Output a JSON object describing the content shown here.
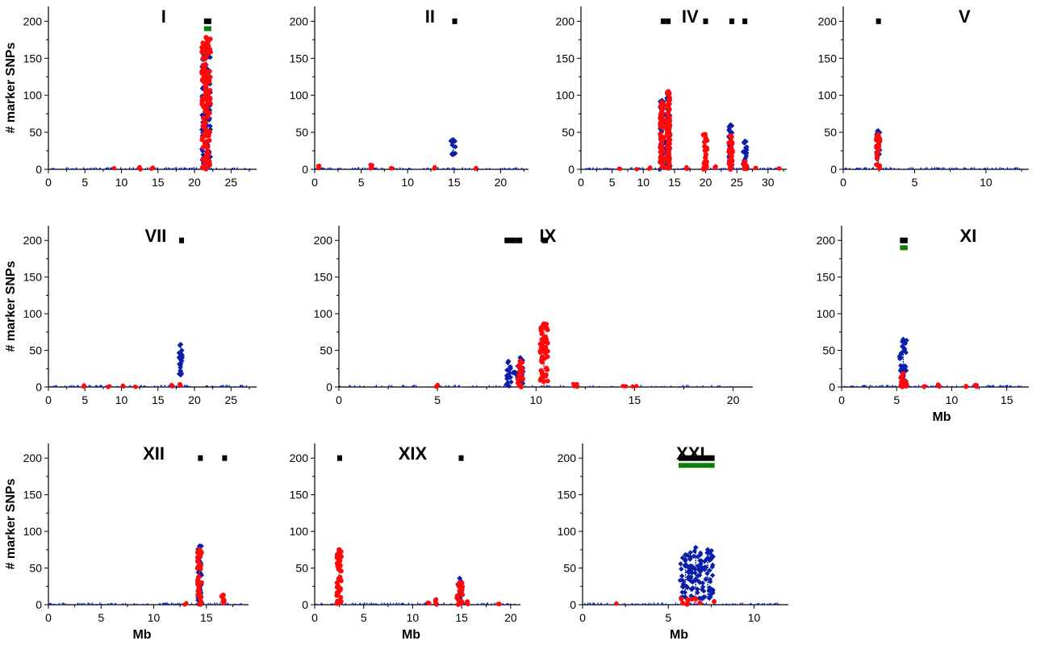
{
  "colors": {
    "blue_series": "#0a1ea8",
    "red_series": "#ff0a0a",
    "black_marker": "#000000",
    "green_marker": "#0a7d0a"
  },
  "y_axis_label": "# marker SNPs",
  "x_axis_label": "Mb",
  "chart_data": [
    {
      "type": "scatter",
      "title": "I",
      "xlim": [
        0,
        28.5
      ],
      "ylim": [
        0,
        220
      ],
      "xticks": [
        0,
        5,
        10,
        15,
        20,
        25
      ],
      "yticks": [
        0,
        50,
        100,
        150,
        200
      ],
      "ylabel": "# marker SNPs",
      "xlabel": "",
      "black_markers": [
        [
          21.3,
          22.3
        ]
      ],
      "green_markers": [
        [
          21.3,
          22.3
        ]
      ],
      "clusters": [
        {
          "color": "blue",
          "x": 21.6,
          "spread": 0.6,
          "max": 165,
          "min": 0
        },
        {
          "color": "red",
          "x": 21.6,
          "spread": 0.6,
          "max": 178,
          "min": 0
        }
      ],
      "bumps": [
        {
          "color": "red",
          "x": 9.0,
          "max": 2
        },
        {
          "color": "red",
          "x": 12.5,
          "max": 4
        },
        {
          "color": "red",
          "x": 14.2,
          "max": 3
        }
      ]
    },
    {
      "type": "scatter",
      "title": "II",
      "xlim": [
        0,
        23
      ],
      "ylim": [
        0,
        220
      ],
      "xticks": [
        0,
        5,
        10,
        15,
        20
      ],
      "yticks": [
        0,
        50,
        100,
        150,
        200
      ],
      "ylabel": "",
      "xlabel": "",
      "black_markers": [
        [
          14.8,
          15.2
        ]
      ],
      "green_markers": [],
      "clusters": [
        {
          "color": "blue",
          "x": 14.9,
          "spread": 0.3,
          "max": 40,
          "min": 18
        }
      ],
      "bumps": [
        {
          "color": "red",
          "x": 0.4,
          "max": 5
        },
        {
          "color": "red",
          "x": 6.1,
          "max": 7
        },
        {
          "color": "red",
          "x": 8.3,
          "max": 3
        },
        {
          "color": "red",
          "x": 12.9,
          "max": 3
        },
        {
          "color": "red",
          "x": 17.3,
          "max": 2
        }
      ]
    },
    {
      "type": "scatter",
      "title": "IV",
      "xlim": [
        0,
        33
      ],
      "ylim": [
        0,
        220
      ],
      "xticks": [
        0,
        5,
        10,
        15,
        20,
        25,
        30
      ],
      "yticks": [
        0,
        50,
        100,
        150,
        200
      ],
      "ylabel": "",
      "xlabel": "",
      "black_markers": [
        [
          12.8,
          13.3
        ],
        [
          13.6,
          14.1
        ],
        [
          19.6,
          20.1
        ],
        [
          23.8,
          24.3
        ],
        [
          25.9,
          26.4
        ]
      ],
      "green_markers": [],
      "clusters": [
        {
          "color": "blue",
          "x": 13.0,
          "spread": 0.3,
          "max": 93,
          "min": 0
        },
        {
          "color": "red",
          "x": 13.0,
          "spread": 0.3,
          "max": 90,
          "min": 0
        },
        {
          "color": "blue",
          "x": 14.0,
          "spread": 0.3,
          "max": 100,
          "min": 0
        },
        {
          "color": "red",
          "x": 14.0,
          "spread": 0.3,
          "max": 105,
          "min": 0
        },
        {
          "color": "red",
          "x": 19.9,
          "spread": 0.35,
          "max": 47,
          "min": 0
        },
        {
          "color": "blue",
          "x": 24.0,
          "spread": 0.3,
          "max": 60,
          "min": 0
        },
        {
          "color": "red",
          "x": 24.0,
          "spread": 0.3,
          "max": 45,
          "min": 0
        },
        {
          "color": "blue",
          "x": 26.3,
          "spread": 0.3,
          "max": 38,
          "min": 5
        },
        {
          "color": "red",
          "x": 26.3,
          "spread": 0.3,
          "max": 10,
          "min": 0
        }
      ],
      "bumps": [
        {
          "color": "red",
          "x": 6.2,
          "max": 2
        },
        {
          "color": "red",
          "x": 9.0,
          "max": 2
        },
        {
          "color": "red",
          "x": 11.0,
          "max": 3
        },
        {
          "color": "red",
          "x": 17.0,
          "max": 3
        },
        {
          "color": "red",
          "x": 21.5,
          "max": 4
        },
        {
          "color": "red",
          "x": 28.0,
          "max": 3
        },
        {
          "color": "red",
          "x": 31.8,
          "max": 2
        }
      ]
    },
    {
      "type": "scatter",
      "title": "V",
      "xlim": [
        0,
        13
      ],
      "ylim": [
        0,
        220
      ],
      "xticks": [
        0,
        5,
        10
      ],
      "yticks": [
        0,
        50,
        100,
        150,
        200
      ],
      "ylabel": "",
      "xlabel": "",
      "black_markers": [
        [
          2.3,
          2.6
        ]
      ],
      "green_markers": [],
      "clusters": [
        {
          "color": "blue",
          "x": 2.45,
          "spread": 0.15,
          "max": 52,
          "min": 0
        },
        {
          "color": "red",
          "x": 2.45,
          "spread": 0.15,
          "max": 47,
          "min": 0
        }
      ],
      "bumps": []
    },
    {
      "type": "scatter",
      "title": "VII",
      "xlim": [
        0,
        28.5
      ],
      "ylim": [
        0,
        220
      ],
      "xticks": [
        0,
        5,
        10,
        15,
        20,
        25
      ],
      "yticks": [
        0,
        50,
        100,
        150,
        200
      ],
      "ylabel": "# marker SNPs",
      "xlabel": "",
      "black_markers": [
        [
          17.9,
          18.4
        ]
      ],
      "green_markers": [],
      "clusters": [
        {
          "color": "blue",
          "x": 18.1,
          "spread": 0.2,
          "max": 58,
          "min": 15
        }
      ],
      "bumps": [
        {
          "color": "red",
          "x": 4.8,
          "max": 3
        },
        {
          "color": "red",
          "x": 8.3,
          "max": 2
        },
        {
          "color": "red",
          "x": 10.3,
          "max": 2
        },
        {
          "color": "red",
          "x": 12.0,
          "max": 2
        },
        {
          "color": "red",
          "x": 17.0,
          "max": 3
        },
        {
          "color": "red",
          "x": 18.1,
          "max": 4
        }
      ]
    },
    {
      "type": "scatter",
      "title": "IX",
      "xlim": [
        0,
        21
      ],
      "ylim": [
        0,
        220
      ],
      "xticks": [
        0,
        5,
        10,
        15,
        20
      ],
      "yticks": [
        0,
        50,
        100,
        150,
        200
      ],
      "ylabel": "",
      "xlabel": "",
      "black_markers": [
        [
          8.4,
          8.7
        ],
        [
          8.7,
          9.0
        ],
        [
          9.0,
          9.3
        ],
        [
          10.3,
          10.6
        ]
      ],
      "green_markers": [],
      "clusters": [
        {
          "color": "blue",
          "x": 8.6,
          "spread": 0.15,
          "max": 35,
          "min": 0
        },
        {
          "color": "blue",
          "x": 8.9,
          "spread": 0.05,
          "max": 20,
          "min": 18
        },
        {
          "color": "blue",
          "x": 9.2,
          "spread": 0.15,
          "max": 40,
          "min": 0
        },
        {
          "color": "red",
          "x": 9.2,
          "spread": 0.15,
          "max": 35,
          "min": 0
        },
        {
          "color": "red",
          "x": 10.4,
          "spread": 0.2,
          "max": 86,
          "min": 0
        }
      ],
      "bumps": [
        {
          "color": "red",
          "x": 5.0,
          "max": 3
        },
        {
          "color": "red",
          "x": 12.0,
          "max": 7
        },
        {
          "color": "red",
          "x": 14.5,
          "max": 3
        },
        {
          "color": "red",
          "x": 15.0,
          "max": 2
        }
      ]
    },
    {
      "type": "scatter",
      "title": "XI",
      "xlim": [
        0,
        17
      ],
      "ylim": [
        0,
        220
      ],
      "xticks": [
        0,
        5,
        10,
        15
      ],
      "yticks": [
        0,
        50,
        100,
        150,
        200
      ],
      "ylabel": "",
      "xlabel": "Mb",
      "black_markers": [
        [
          5.3,
          6.0
        ]
      ],
      "green_markers": [
        [
          5.3,
          6.0
        ]
      ],
      "clusters": [
        {
          "color": "blue",
          "x": 5.6,
          "spread": 0.35,
          "max": 65,
          "min": 5
        },
        {
          "color": "red",
          "x": 5.6,
          "spread": 0.35,
          "max": 18,
          "min": 0
        }
      ],
      "bumps": [
        {
          "color": "red",
          "x": 7.5,
          "max": 3
        },
        {
          "color": "red",
          "x": 8.8,
          "max": 5
        },
        {
          "color": "red",
          "x": 11.3,
          "max": 3
        },
        {
          "color": "red",
          "x": 12.2,
          "max": 3
        }
      ]
    },
    {
      "type": "scatter",
      "title": "XII",
      "xlim": [
        0,
        19
      ],
      "ylim": [
        0,
        220
      ],
      "xticks": [
        0,
        5,
        10,
        15
      ],
      "yticks": [
        0,
        50,
        100,
        150,
        200
      ],
      "ylabel": "# marker SNPs",
      "xlabel": "Mb",
      "black_markers": [
        [
          14.2,
          14.5
        ],
        [
          16.5,
          16.8
        ]
      ],
      "green_markers": [],
      "clusters": [
        {
          "color": "blue",
          "x": 14.35,
          "spread": 0.2,
          "max": 80,
          "min": 0
        },
        {
          "color": "red",
          "x": 14.35,
          "spread": 0.2,
          "max": 75,
          "min": 0
        },
        {
          "color": "red",
          "x": 16.6,
          "spread": 0.2,
          "max": 13,
          "min": 0
        }
      ],
      "bumps": [
        {
          "color": "red",
          "x": 13.0,
          "max": 3
        }
      ]
    },
    {
      "type": "scatter",
      "title": "XIX",
      "xlim": [
        0,
        21
      ],
      "ylim": [
        0,
        220
      ],
      "xticks": [
        0,
        5,
        10,
        15,
        20
      ],
      "yticks": [
        0,
        50,
        100,
        150,
        200
      ],
      "ylabel": "",
      "xlabel": "Mb",
      "black_markers": [
        [
          2.3,
          2.8
        ],
        [
          14.7,
          15.0
        ]
      ],
      "green_markers": [],
      "clusters": [
        {
          "color": "red",
          "x": 2.5,
          "spread": 0.25,
          "max": 75,
          "min": 0
        },
        {
          "color": "blue",
          "x": 14.8,
          "spread": 0.2,
          "max": 36,
          "min": 0
        },
        {
          "color": "red",
          "x": 14.8,
          "spread": 0.3,
          "max": 30,
          "min": 0
        }
      ],
      "bumps": [
        {
          "color": "red",
          "x": 12.4,
          "max": 8
        },
        {
          "color": "red",
          "x": 11.6,
          "max": 3
        },
        {
          "color": "red",
          "x": 15.6,
          "max": 5
        },
        {
          "color": "red",
          "x": 18.8,
          "max": 3
        }
      ]
    },
    {
      "type": "scatter",
      "title": "XXI",
      "xlim": [
        0,
        12
      ],
      "ylim": [
        0,
        220
      ],
      "xticks": [
        0,
        5,
        10
      ],
      "yticks": [
        0,
        50,
        100,
        150,
        200
      ],
      "ylabel": "",
      "xlabel": "Mb",
      "black_markers": [
        [
          5.6,
          7.7
        ]
      ],
      "green_markers": [
        [
          5.6,
          7.7
        ]
      ],
      "clusters": [
        {
          "color": "blue",
          "x": 6.0,
          "spread": 0.35,
          "max": 68,
          "min": 8
        },
        {
          "color": "blue",
          "x": 6.6,
          "spread": 0.35,
          "max": 78,
          "min": 8
        },
        {
          "color": "blue",
          "x": 7.3,
          "spread": 0.35,
          "max": 75,
          "min": 8
        },
        {
          "color": "red",
          "x": 6.6,
          "spread": 1.1,
          "max": 8,
          "min": 0
        }
      ],
      "bumps": [
        {
          "color": "red",
          "x": 2.0,
          "max": 2
        }
      ]
    }
  ]
}
